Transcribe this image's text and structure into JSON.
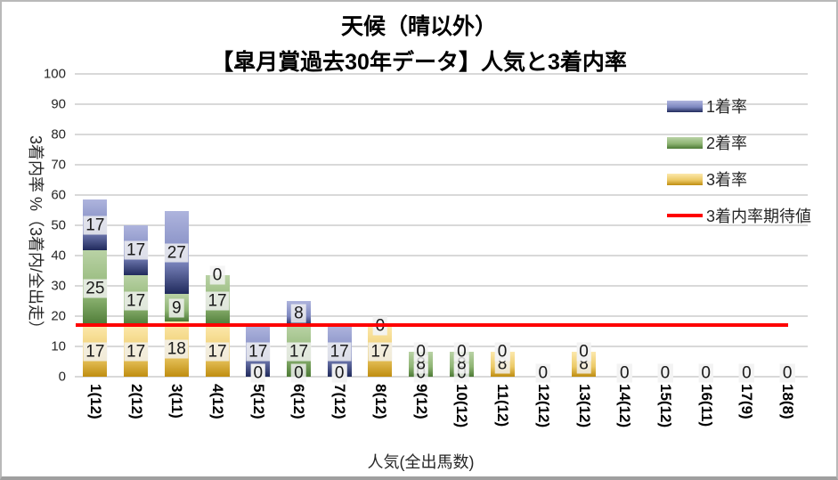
{
  "chart_data": {
    "type": "bar",
    "subtype": "stacked-column",
    "title": "天候（晴以外）",
    "subtitle": "【皐月賞過去30年データ】人気と3着内率",
    "xlabel": "人気(全出馬数)",
    "ylabel": "3着内率 %（3着内/全出走）",
    "ylim": [
      0,
      100
    ],
    "ytick_step": 10,
    "yticks": [
      0,
      10,
      20,
      30,
      40,
      50,
      60,
      70,
      80,
      90,
      100
    ],
    "grid": true,
    "legend_position": "right-overlay",
    "categories": [
      "1(12)",
      "2(12)",
      "3(11)",
      "4(12)",
      "5(12)",
      "6(12)",
      "7(12)",
      "8(12)",
      "9(12)",
      "10(12)",
      "11(12)",
      "12(12)",
      "13(12)",
      "14(12)",
      "15(12)",
      "16(11)",
      "17(9)",
      "18(8)"
    ],
    "series": [
      {
        "key": "rank1",
        "name": "1着率",
        "color_light": "#aeb4dd",
        "color_mid": "#7e88c0",
        "color_dark": "#202a5c",
        "values": [
          16.7,
          16.7,
          27.3,
          0,
          16.7,
          8.3,
          16.7,
          0,
          0,
          0,
          0,
          0,
          0,
          0,
          0,
          0,
          0,
          0
        ],
        "labels": [
          "17",
          "17",
          "27",
          "0",
          "17",
          "8",
          "17",
          "0",
          "0",
          "0",
          "0",
          "0",
          "0",
          "0",
          "0",
          "0",
          "0",
          "0"
        ]
      },
      {
        "key": "rank2",
        "name": "2着率",
        "color_light": "#b9d2a5",
        "color_mid": "#8fb574",
        "color_dark": "#4c7a35",
        "values": [
          25,
          16.7,
          9.1,
          16.7,
          0,
          16.7,
          0,
          0,
          8.3,
          8.3,
          0,
          0,
          0,
          0,
          0,
          0,
          0,
          0
        ],
        "labels": [
          "25",
          "17",
          "9",
          "17",
          "0",
          "17",
          "0",
          "0",
          "8",
          "8",
          "0",
          "0",
          "0",
          "0",
          "0",
          "0",
          "0",
          "0"
        ]
      },
      {
        "key": "rank3",
        "name": "3着率",
        "color_light": "#fce8ac",
        "color_mid": "#ecca67",
        "color_dark": "#bf8d10",
        "values": [
          16.7,
          16.7,
          18.2,
          16.7,
          0,
          0,
          0,
          16.7,
          0,
          0,
          8.3,
          0,
          8.3,
          0,
          0,
          0,
          0,
          0
        ],
        "labels": [
          "17",
          "17",
          "18",
          "17",
          "0",
          "0",
          "0",
          "17",
          "0",
          "0",
          "8",
          "0",
          "8",
          "0",
          "0",
          "0",
          "0",
          "0"
        ]
      }
    ],
    "stack_order": [
      "rank3",
      "rank2",
      "rank1"
    ],
    "expected_line": {
      "name": "3着内率期待値",
      "value": 17.2,
      "color": "#fe0000"
    },
    "colors": {
      "grid": "#d9d9d9",
      "label_bg": "#f3f3f3",
      "text": "#262626"
    }
  }
}
